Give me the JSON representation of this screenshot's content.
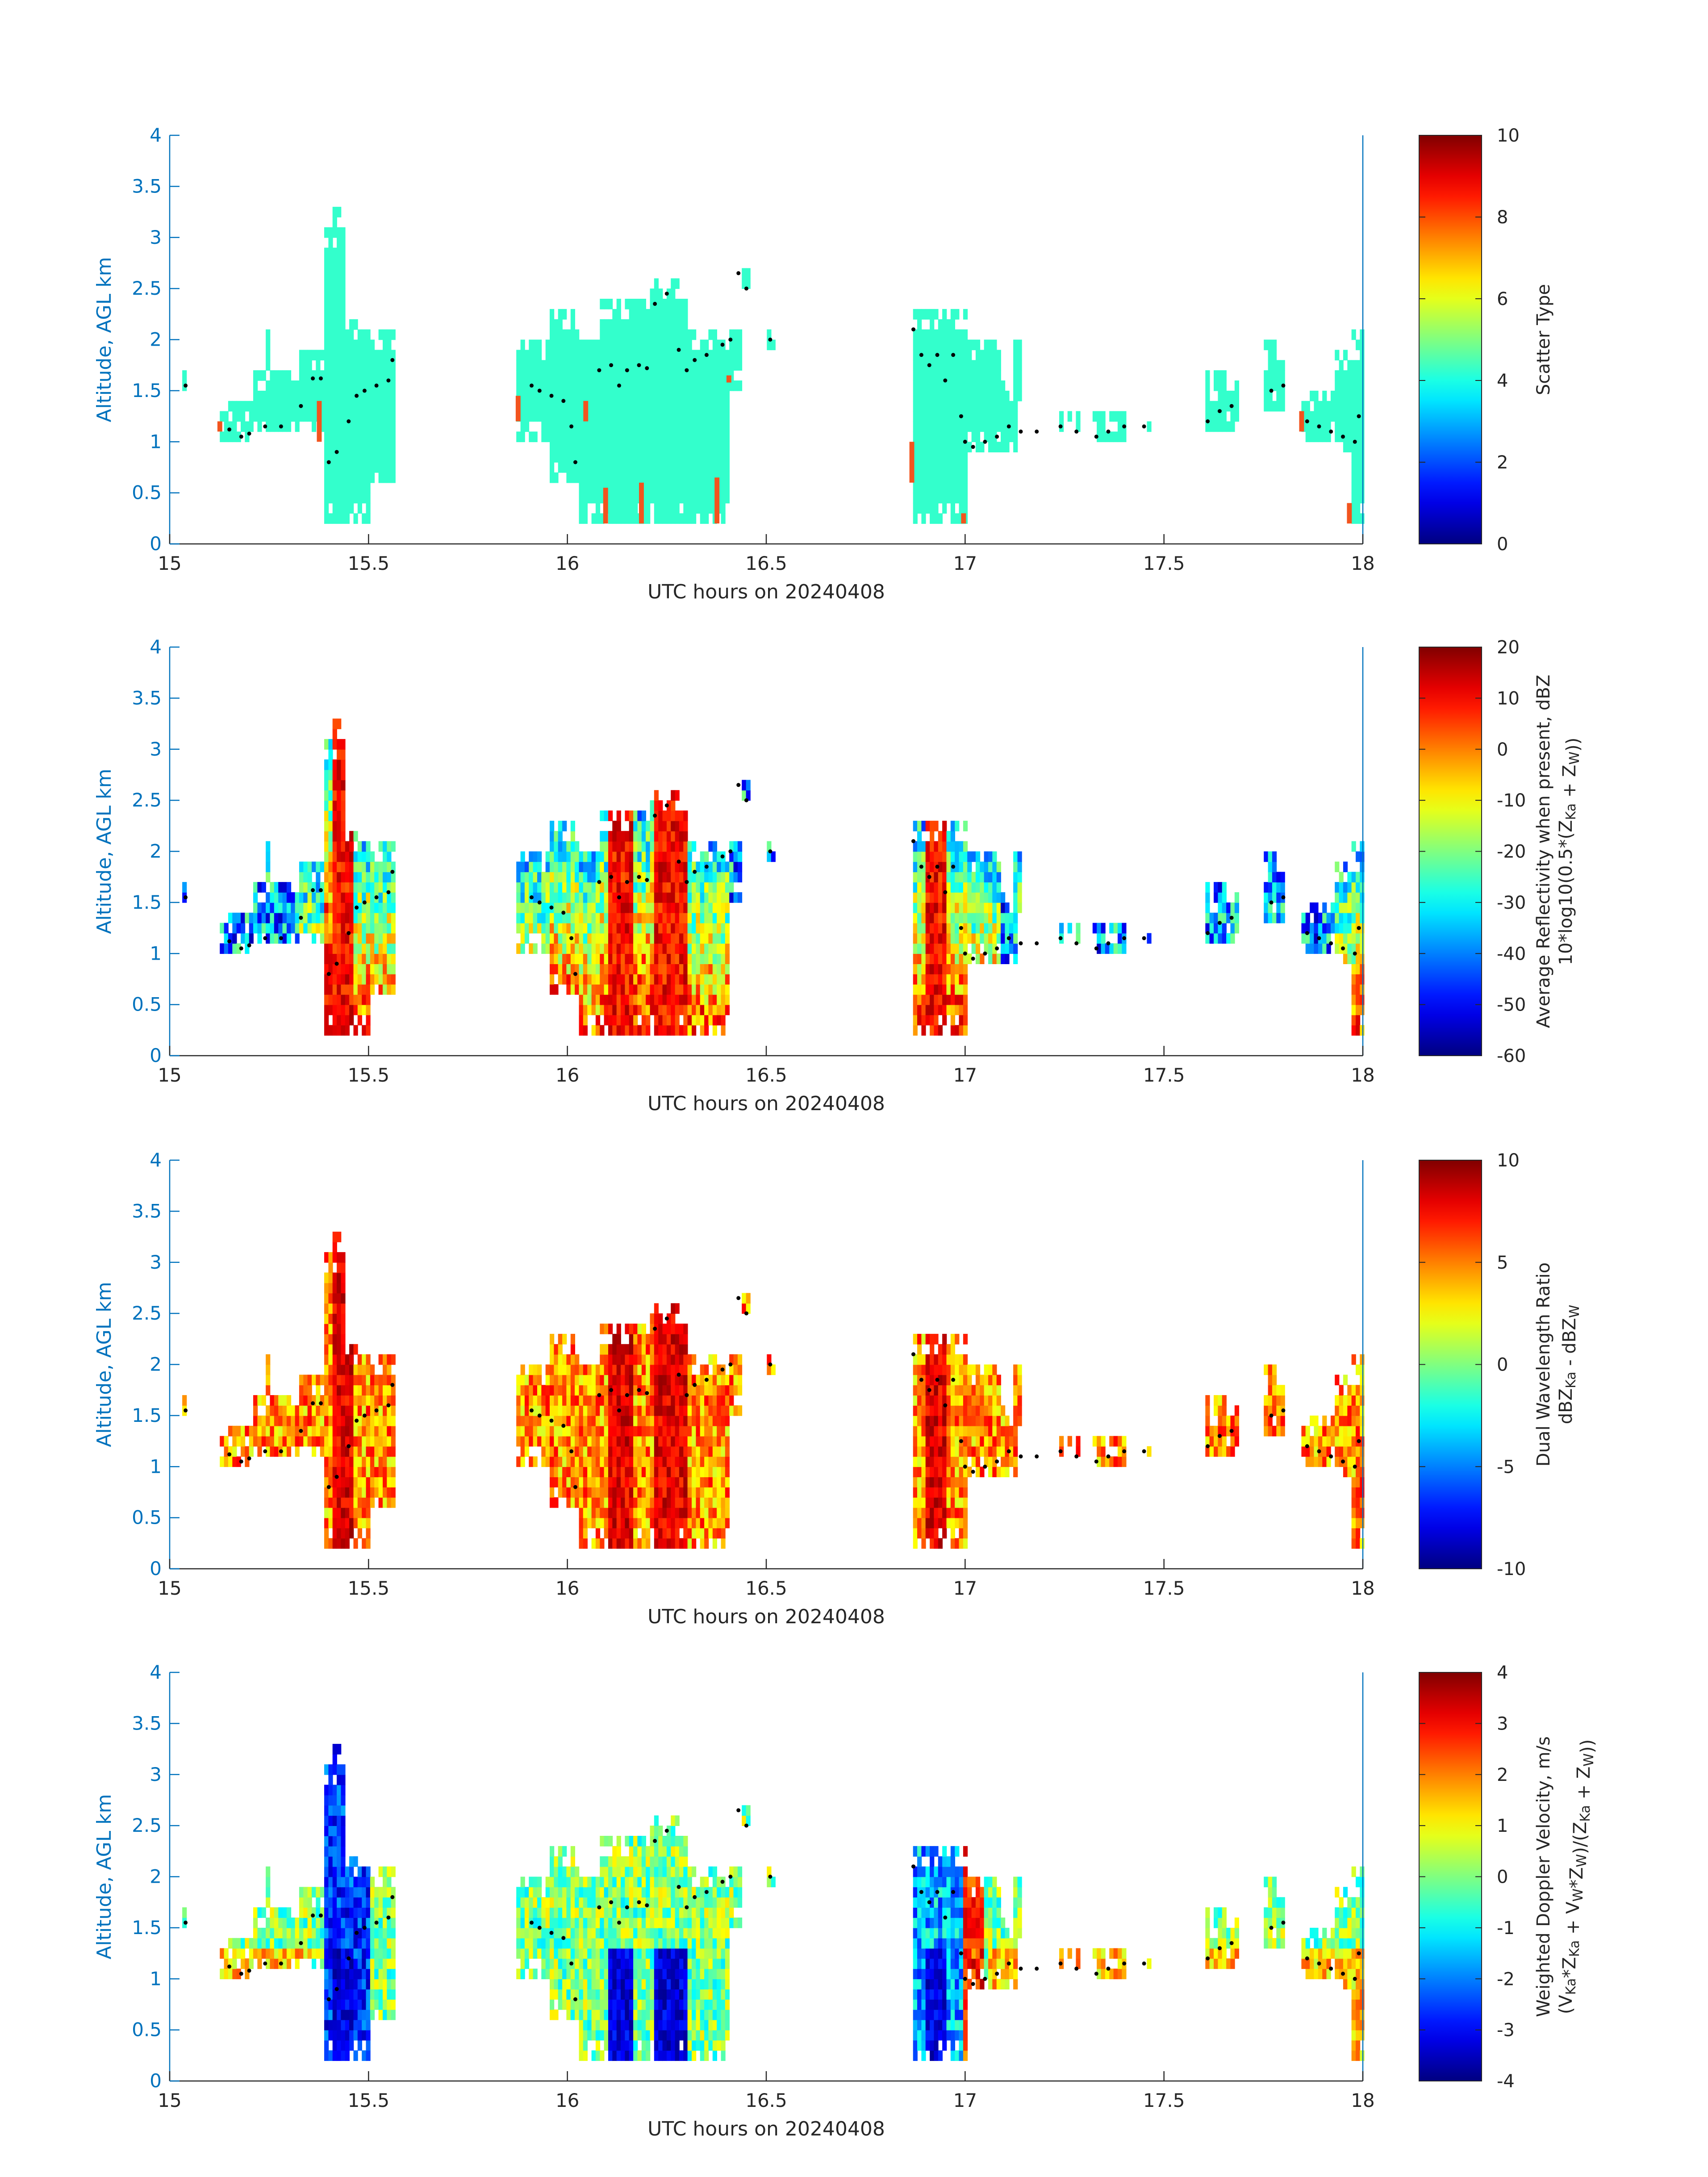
{
  "chart_data": [
    {
      "type": "heatmap",
      "xlabel": "UTC hours on 20240408",
      "ylabel": "Altitude, AGL km",
      "xlim": [
        15,
        18
      ],
      "ylim": [
        0,
        4
      ],
      "xticks": [
        "15",
        "15.5",
        "16",
        "16.5",
        "17",
        "17.5",
        "18"
      ],
      "yticks": [
        "0",
        "0.5",
        "1",
        "1.5",
        "2",
        "2.5",
        "3",
        "3.5",
        "4"
      ],
      "colorbar": {
        "label_lines": [
          "Scatter Type"
        ],
        "range": [
          0,
          10
        ],
        "ticks": [
          "0",
          "2",
          "4",
          "6",
          "8",
          "10"
        ]
      },
      "field": "scatter",
      "values_note_values": [
        3.6,
        8.2
      ]
    },
    {
      "type": "heatmap",
      "xlabel": "UTC hours on 20240408",
      "ylabel": "Altitude, AGL km",
      "xlim": [
        15,
        18
      ],
      "ylim": [
        0,
        4
      ],
      "xticks": [
        "15",
        "15.5",
        "16",
        "16.5",
        "17",
        "17.5",
        "18"
      ],
      "yticks": [
        "0",
        "0.5",
        "1",
        "1.5",
        "2",
        "2.5",
        "3",
        "3.5",
        "4"
      ],
      "colorbar": {
        "label_lines": [
          "Average Reflectivity when present, dBZ",
          "10*log10(0.5*(Z_Ka + Z_W))"
        ],
        "range": [
          -60,
          20
        ],
        "ticks": [
          "-60",
          "-50",
          "-40",
          "-30",
          "-20",
          "-10",
          "0",
          "10",
          "20"
        ]
      },
      "field": "refl"
    },
    {
      "type": "heatmap",
      "xlabel": "UTC hours on 20240408",
      "ylabel": "Altitude, AGL km",
      "xlim": [
        15,
        18
      ],
      "ylim": [
        0,
        4
      ],
      "xticks": [
        "15",
        "15.5",
        "16",
        "16.5",
        "17",
        "17.5",
        "18"
      ],
      "yticks": [
        "0",
        "0.5",
        "1",
        "1.5",
        "2",
        "2.5",
        "3",
        "3.5",
        "4"
      ],
      "colorbar": {
        "label_lines": [
          "Dual Wavelength Ratio",
          "dBZ_Ka - dBZ_W"
        ],
        "range": [
          -10,
          10
        ],
        "ticks": [
          "-10",
          "-5",
          "0",
          "5",
          "10"
        ]
      },
      "field": "dwr"
    },
    {
      "type": "heatmap",
      "xlabel": "UTC hours on 20240408",
      "ylabel": "Altitude, AGL km",
      "xlim": [
        15,
        18
      ],
      "ylim": [
        0,
        4
      ],
      "xticks": [
        "15",
        "15.5",
        "16",
        "16.5",
        "17",
        "17.5",
        "18"
      ],
      "yticks": [
        "0",
        "0.5",
        "1",
        "1.5",
        "2",
        "2.5",
        "3",
        "3.5",
        "4"
      ],
      "colorbar": {
        "label_lines": [
          "Weighted Doppler Velocity, m/s",
          "(V_Ka*Z_Ka + V_W*Z_W)/(Z_Ka + Z_W))"
        ],
        "range": [
          -4,
          4
        ],
        "ticks": [
          "-4",
          "-3",
          "-2",
          "-1",
          "0",
          "1",
          "2",
          "3",
          "4"
        ]
      },
      "field": "vel"
    }
  ],
  "cloud_regions": [
    {
      "x0": 15.03,
      "x1": 15.05,
      "bottom": 1.45,
      "top": 1.62
    },
    {
      "x0": 15.12,
      "x1": 15.2,
      "bottom": 1.0,
      "top": 1.4
    },
    {
      "x0": 15.2,
      "x1": 15.32,
      "bottom": 1.05,
      "top": 1.7
    },
    {
      "x0": 15.24,
      "x1": 15.25,
      "bottom": 1.3,
      "top": 2.1
    },
    {
      "x0": 15.32,
      "x1": 15.38,
      "bottom": 1.05,
      "top": 1.9
    },
    {
      "x0": 15.38,
      "x1": 15.42,
      "bottom": 0.2,
      "top": 3.1
    },
    {
      "x0": 15.4,
      "x1": 15.44,
      "bottom": 0.2,
      "top": 3.3
    },
    {
      "x0": 15.44,
      "x1": 15.5,
      "bottom": 0.2,
      "top": 2.2
    },
    {
      "x0": 15.5,
      "x1": 15.56,
      "bottom": 0.6,
      "top": 2.1
    },
    {
      "x0": 15.87,
      "x1": 15.95,
      "bottom": 1.0,
      "top": 2.0
    },
    {
      "x0": 15.95,
      "x1": 16.02,
      "bottom": 0.6,
      "top": 2.3
    },
    {
      "x0": 16.02,
      "x1": 16.08,
      "bottom": 0.2,
      "top": 2.0
    },
    {
      "x0": 16.08,
      "x1": 16.2,
      "bottom": 0.2,
      "top": 2.4
    },
    {
      "x0": 16.2,
      "x1": 16.3,
      "bottom": 0.2,
      "top": 2.6
    },
    {
      "x0": 16.3,
      "x1": 16.4,
      "bottom": 0.2,
      "top": 2.1
    },
    {
      "x0": 16.4,
      "x1": 16.43,
      "bottom": 1.5,
      "top": 2.1
    },
    {
      "x0": 16.42,
      "x1": 16.45,
      "bottom": 2.45,
      "top": 2.7
    },
    {
      "x0": 16.5,
      "x1": 16.52,
      "bottom": 1.9,
      "top": 2.05
    },
    {
      "x0": 16.86,
      "x1": 16.92,
      "bottom": 0.2,
      "top": 2.3
    },
    {
      "x0": 16.92,
      "x1": 17.0,
      "bottom": 0.2,
      "top": 2.3
    },
    {
      "x0": 17.0,
      "x1": 17.08,
      "bottom": 0.9,
      "top": 2.0
    },
    {
      "x0": 17.08,
      "x1": 17.13,
      "bottom": 0.9,
      "top": 1.55
    },
    {
      "x0": 17.12,
      "x1": 17.14,
      "bottom": 1.3,
      "top": 2.0
    },
    {
      "x0": 17.16,
      "x1": 17.18,
      "bottom": 1.05,
      "top": 1.15
    },
    {
      "x0": 17.23,
      "x1": 17.28,
      "bottom": 1.05,
      "top": 1.25
    },
    {
      "x0": 17.32,
      "x1": 17.4,
      "bottom": 0.95,
      "top": 1.3
    },
    {
      "x0": 17.45,
      "x1": 17.47,
      "bottom": 1.1,
      "top": 1.2
    },
    {
      "x0": 17.6,
      "x1": 17.68,
      "bottom": 1.1,
      "top": 1.65
    },
    {
      "x0": 17.75,
      "x1": 17.8,
      "bottom": 1.3,
      "top": 1.95
    },
    {
      "x0": 17.84,
      "x1": 17.92,
      "bottom": 1.0,
      "top": 1.5
    },
    {
      "x0": 17.92,
      "x1": 17.97,
      "bottom": 0.85,
      "top": 1.9
    },
    {
      "x0": 17.97,
      "x1": 18.0,
      "bottom": 0.2,
      "top": 2.05
    }
  ],
  "cloud_top_dots": [
    [
      15.04,
      1.55
    ],
    [
      15.15,
      1.12
    ],
    [
      15.18,
      1.05
    ],
    [
      15.2,
      1.08
    ],
    [
      15.24,
      1.15
    ],
    [
      15.28,
      1.15
    ],
    [
      15.33,
      1.35
    ],
    [
      15.36,
      1.62
    ],
    [
      15.38,
      1.62
    ],
    [
      15.4,
      0.8
    ],
    [
      15.42,
      0.9
    ],
    [
      15.45,
      1.2
    ],
    [
      15.47,
      1.45
    ],
    [
      15.49,
      1.5
    ],
    [
      15.52,
      1.55
    ],
    [
      15.55,
      1.6
    ],
    [
      15.56,
      1.8
    ],
    [
      15.91,
      1.55
    ],
    [
      15.93,
      1.5
    ],
    [
      15.96,
      1.45
    ],
    [
      15.99,
      1.4
    ],
    [
      16.01,
      1.15
    ],
    [
      16.02,
      0.8
    ],
    [
      16.08,
      1.7
    ],
    [
      16.11,
      1.75
    ],
    [
      16.13,
      1.55
    ],
    [
      16.15,
      1.7
    ],
    [
      16.18,
      1.75
    ],
    [
      16.2,
      1.72
    ],
    [
      16.22,
      2.35
    ],
    [
      16.25,
      2.45
    ],
    [
      16.28,
      1.9
    ],
    [
      16.3,
      1.7
    ],
    [
      16.32,
      1.8
    ],
    [
      16.35,
      1.85
    ],
    [
      16.39,
      1.95
    ],
    [
      16.41,
      2.0
    ],
    [
      16.43,
      2.65
    ],
    [
      16.45,
      2.5
    ],
    [
      16.51,
      2.0
    ],
    [
      16.87,
      2.1
    ],
    [
      16.89,
      1.85
    ],
    [
      16.91,
      1.75
    ],
    [
      16.93,
      1.85
    ],
    [
      16.95,
      1.6
    ],
    [
      16.97,
      1.85
    ],
    [
      16.99,
      1.25
    ],
    [
      17.0,
      1.0
    ],
    [
      17.02,
      0.95
    ],
    [
      17.05,
      1.0
    ],
    [
      17.08,
      1.05
    ],
    [
      17.11,
      1.15
    ],
    [
      17.14,
      1.1
    ],
    [
      17.18,
      1.1
    ],
    [
      17.24,
      1.15
    ],
    [
      17.28,
      1.1
    ],
    [
      17.33,
      1.05
    ],
    [
      17.36,
      1.1
    ],
    [
      17.4,
      1.15
    ],
    [
      17.45,
      1.15
    ],
    [
      17.61,
      1.2
    ],
    [
      17.64,
      1.3
    ],
    [
      17.67,
      1.35
    ],
    [
      17.77,
      1.5
    ],
    [
      17.8,
      1.55
    ],
    [
      17.86,
      1.2
    ],
    [
      17.89,
      1.15
    ],
    [
      17.92,
      1.1
    ],
    [
      17.95,
      1.05
    ],
    [
      17.98,
      1.0
    ],
    [
      17.99,
      1.25
    ]
  ],
  "scatter_orange_strips": [
    {
      "x0": 15.12,
      "x1": 15.13,
      "bottom": 1.1,
      "top": 1.2
    },
    {
      "x0": 15.37,
      "x1": 15.38,
      "bottom": 1.0,
      "top": 1.4
    },
    {
      "x0": 15.87,
      "x1": 15.88,
      "bottom": 1.2,
      "top": 1.45
    },
    {
      "x0": 16.04,
      "x1": 16.05,
      "bottom": 1.2,
      "top": 1.4
    },
    {
      "x0": 16.09,
      "x1": 16.1,
      "bottom": 0.2,
      "top": 0.55
    },
    {
      "x0": 16.18,
      "x1": 16.19,
      "bottom": 0.2,
      "top": 0.6
    },
    {
      "x0": 16.37,
      "x1": 16.38,
      "bottom": 0.2,
      "top": 0.65
    },
    {
      "x0": 16.4,
      "x1": 16.41,
      "bottom": 1.58,
      "top": 1.65
    },
    {
      "x0": 16.86,
      "x1": 16.87,
      "bottom": 0.6,
      "top": 1.0
    },
    {
      "x0": 16.99,
      "x1": 17.0,
      "bottom": 0.2,
      "top": 0.3
    },
    {
      "x0": 17.84,
      "x1": 17.85,
      "bottom": 1.1,
      "top": 1.3
    },
    {
      "x0": 17.96,
      "x1": 17.97,
      "bottom": 0.2,
      "top": 0.4
    }
  ]
}
